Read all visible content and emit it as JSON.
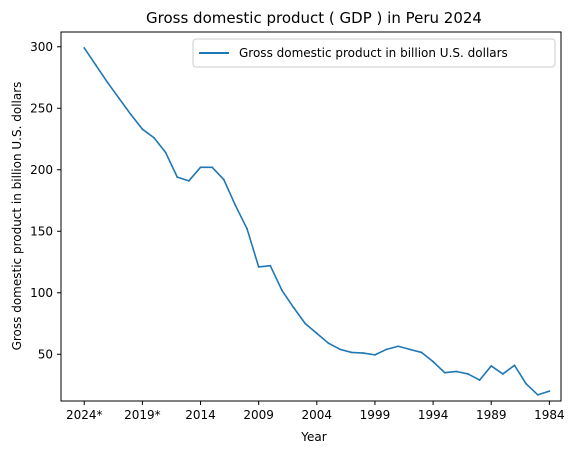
{
  "chart_data": {
    "type": "line",
    "title": "Gross domestic product ( GDP ) in Peru 2024",
    "xlabel": "Year",
    "ylabel": "Gross domestic product in billion U.S. dollars",
    "x_order": "descending",
    "x": [
      2024,
      2023,
      2022,
      2021,
      2020,
      2019,
      2018,
      2017,
      2016,
      2015,
      2014,
      2013,
      2012,
      2011,
      2010,
      2009,
      2008,
      2007,
      2006,
      2005,
      2004,
      2003,
      2002,
      2001,
      2000,
      1999,
      1998,
      1997,
      1996,
      1995,
      1994,
      1993,
      1992,
      1991,
      1990,
      1989,
      1988,
      1987,
      1986,
      1985,
      1984
    ],
    "x_tick_values": [
      2024,
      2019,
      2014,
      2009,
      2004,
      1999,
      1994,
      1989,
      1984
    ],
    "x_tick_labels": [
      "2024*",
      "2019*",
      "2014",
      "2009",
      "2004",
      "1999",
      "1994",
      "1989",
      "1984"
    ],
    "xlim": [
      2026,
      1983
    ],
    "y_ticks": [
      50,
      100,
      150,
      200,
      250,
      300
    ],
    "ylim": [
      12,
      312
    ],
    "grid": false,
    "legend_position": "top-right",
    "series": [
      {
        "name": "Gross domestic product in billion U.S. dollars",
        "color": "#1f77b4",
        "values": [
          299,
          285,
          271,
          258,
          245,
          233,
          226,
          214,
          194,
          191,
          202,
          202,
          192,
          171,
          152,
          121,
          122,
          102,
          88,
          75,
          67,
          59,
          54,
          51.5,
          51,
          49.5,
          54,
          56.5,
          54,
          51.5,
          44,
          35,
          36,
          34,
          29,
          40.5,
          34,
          41,
          26,
          17,
          20
        ]
      }
    ]
  }
}
